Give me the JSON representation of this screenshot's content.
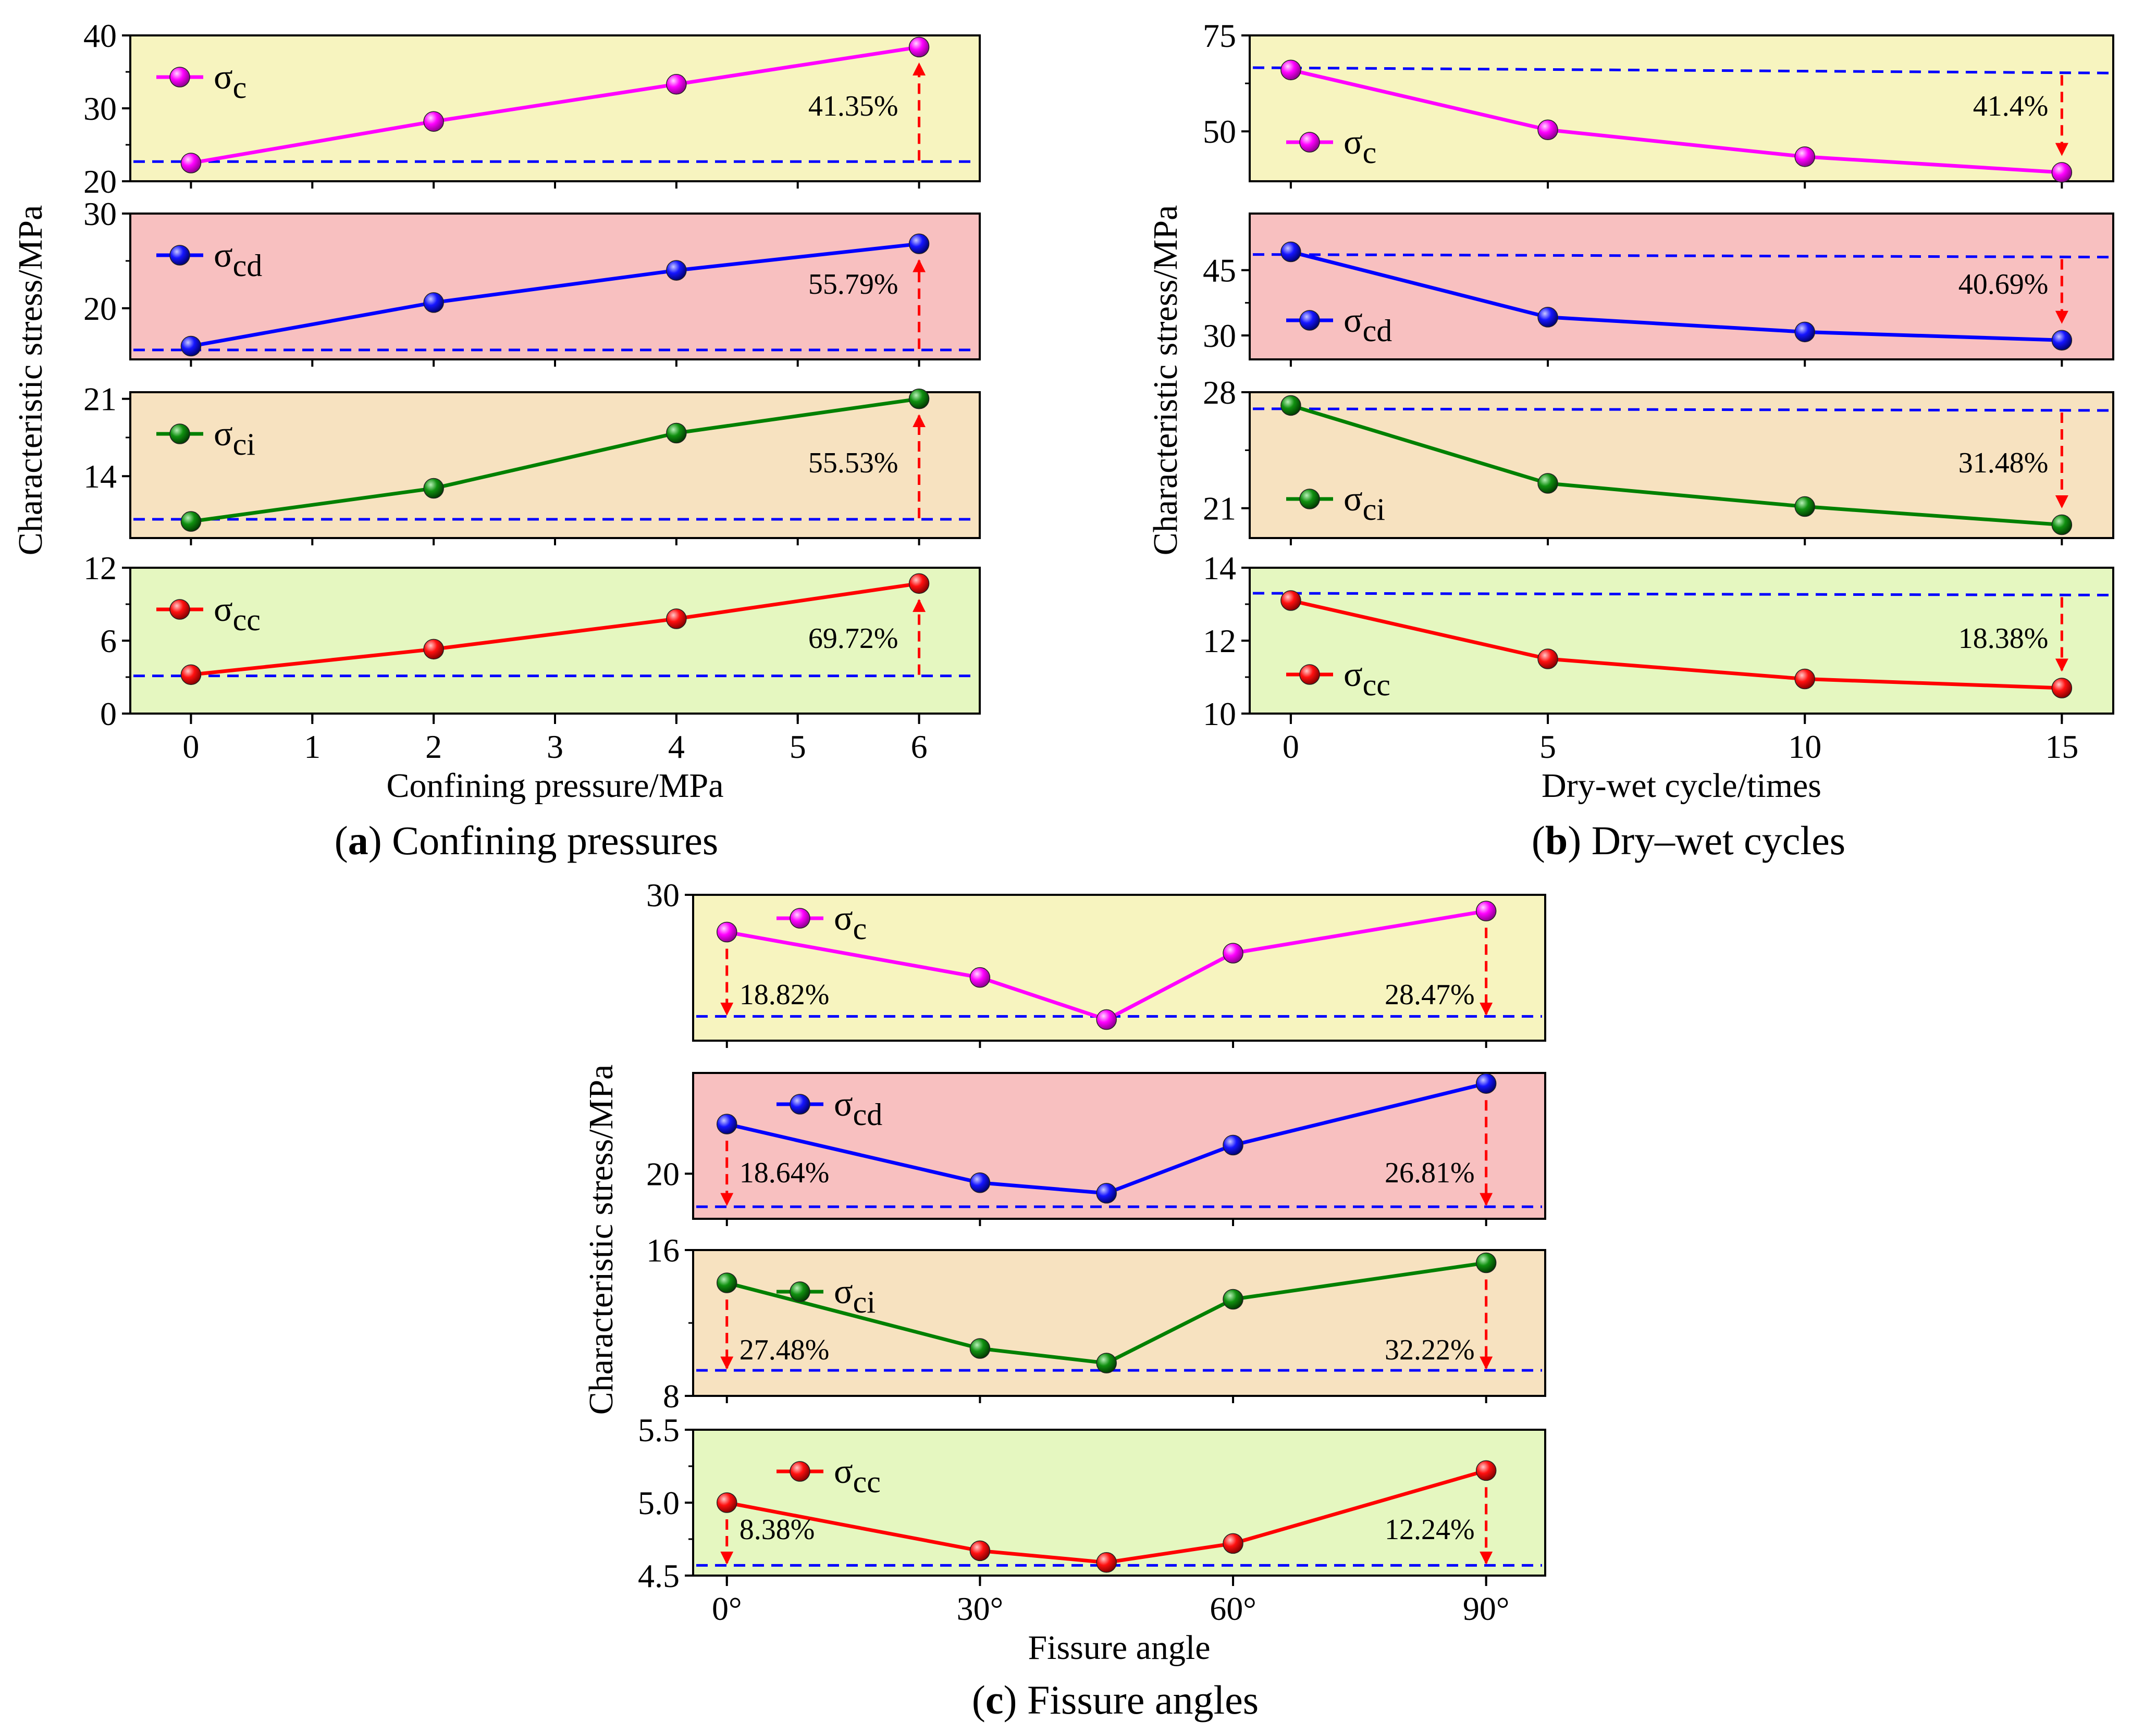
{
  "chart_data": [
    {
      "type": "line",
      "id": "a",
      "caption_letter": "a",
      "caption_text": "Confining pressures",
      "xlabel": "Confining pressure/MPa",
      "ylabel": "Characteristic stress/MPa",
      "xlim": [
        -0.5,
        6.5
      ],
      "xticks": [
        0,
        1,
        2,
        3,
        4,
        5,
        6
      ],
      "xtick_labels": [
        "0",
        "1",
        "2",
        "3",
        "4",
        "5",
        "6"
      ],
      "x": [
        0,
        2,
        4,
        6
      ],
      "arrow_direction": "up",
      "label_position": "right",
      "panels": [
        {
          "name": "σc",
          "symbol": "σ",
          "sub": "c",
          "color": "#ff00ff",
          "bg": "#f7f4bf",
          "values": [
            22.5,
            28.2,
            33.3,
            38.4
          ],
          "ylim": [
            20,
            40
          ],
          "yticks": [
            20,
            30,
            40
          ],
          "ytick_labels": [
            "20",
            "30",
            "40"
          ],
          "ref": [
            22.7,
            22.7
          ],
          "pct": "41.35%",
          "show_bottom_tick": true
        },
        {
          "name": "σcd",
          "symbol": "σ",
          "sub": "cd",
          "color": "#0000ff",
          "bg": "#f8c0c0",
          "values": [
            16.0,
            20.6,
            24.0,
            26.8
          ],
          "ylim": [
            14.6,
            30
          ],
          "yticks": [
            20,
            30
          ],
          "ytick_labels": [
            "20",
            "30"
          ],
          "ref": [
            15.6,
            15.6
          ],
          "pct": "55.79%",
          "show_bottom_tick": false
        },
        {
          "name": "σci",
          "symbol": "σ",
          "sub": "ci",
          "color": "#008000",
          "bg": "#f7e2c0",
          "values": [
            9.9,
            12.9,
            17.9,
            21.0
          ],
          "ylim": [
            8.4,
            21.6
          ],
          "yticks": [
            14,
            21
          ],
          "ytick_labels": [
            "14",
            "21"
          ],
          "ref": [
            10.1,
            10.1
          ],
          "pct": "55.53%",
          "show_bottom_tick": false
        },
        {
          "name": "σcc",
          "symbol": "σ",
          "sub": "cc",
          "color": "#ff0000",
          "bg": "#e5f7c0",
          "values": [
            3.2,
            5.3,
            7.8,
            10.7
          ],
          "ylim": [
            0,
            12
          ],
          "yticks": [
            0,
            6,
            12
          ],
          "ytick_labels": [
            "0",
            "6",
            "12"
          ],
          "ref": [
            3.1,
            3.1
          ],
          "pct": "69.72%",
          "show_bottom_tick": true
        }
      ]
    },
    {
      "type": "line",
      "id": "b",
      "caption_letter": "b",
      "caption_text": "Dry–wet cycles",
      "xlabel": "Dry-wet cycle/times",
      "ylabel": "Characteristic stress/MPa",
      "xlim": [
        -0.8,
        16
      ],
      "xticks": [
        0,
        5,
        10,
        15
      ],
      "xtick_labels": [
        "0",
        "5",
        "10",
        "15"
      ],
      "x": [
        0,
        5,
        10,
        15
      ],
      "arrow_direction": "down",
      "label_position": "left",
      "panels": [
        {
          "name": "σc",
          "symbol": "σ",
          "sub": "c",
          "color": "#ff00ff",
          "bg": "#f7f4bf",
          "values": [
            66.0,
            50.4,
            43.4,
            39.3
          ],
          "ylim": [
            37,
            75
          ],
          "yticks": [
            50,
            75
          ],
          "ytick_labels": [
            "50",
            "75"
          ],
          "ref": [
            66.6,
            65.2
          ],
          "pct": "41.4%",
          "show_bottom_tick": false
        },
        {
          "name": "σcd",
          "symbol": "σ",
          "sub": "cd",
          "color": "#0000ff",
          "bg": "#f8c0c0",
          "values": [
            49.2,
            34.2,
            30.8,
            28.9
          ],
          "ylim": [
            24.5,
            58
          ],
          "yticks": [
            30,
            45
          ],
          "ytick_labels": [
            "30",
            "45"
          ],
          "ref": [
            48.6,
            48.0
          ],
          "pct": "40.69%",
          "show_bottom_tick": false
        },
        {
          "name": "σci",
          "symbol": "σ",
          "sub": "ci",
          "color": "#008000",
          "bg": "#f7e2c0",
          "values": [
            27.2,
            22.5,
            21.1,
            20.0
          ],
          "ylim": [
            19.2,
            28
          ],
          "yticks": [
            21,
            28
          ],
          "ytick_labels": [
            "21",
            "28"
          ],
          "ref": [
            27.0,
            26.9
          ],
          "pct": "31.48%",
          "show_bottom_tick": false
        },
        {
          "name": "σcc",
          "symbol": "σ",
          "sub": "cc",
          "color": "#ff0000",
          "bg": "#e5f7c0",
          "values": [
            13.1,
            11.5,
            10.95,
            10.7
          ],
          "ylim": [
            10,
            14
          ],
          "yticks": [
            10,
            12,
            14
          ],
          "ytick_labels": [
            "10",
            "12",
            "14"
          ],
          "ref": [
            13.3,
            13.25
          ],
          "pct": "18.38%",
          "show_bottom_tick": true
        }
      ]
    },
    {
      "type": "line",
      "id": "c",
      "caption_letter": "c",
      "caption_text": "Fissure angles",
      "xlabel": "Fissure angle",
      "ylabel": "Characteristic stress/MPa",
      "xlim": [
        -4,
        97
      ],
      "xticks": [
        0,
        30,
        60,
        90
      ],
      "xtick_labels": [
        "0°",
        "30°",
        "60°",
        "90°"
      ],
      "x": [
        0,
        30,
        45,
        60,
        90
      ],
      "arrow_direction": "down",
      "label_position": "both",
      "panels": [
        {
          "name": "σc",
          "symbol": "σ",
          "sub": "c",
          "color": "#ff00ff",
          "bg": "#f7f4bf",
          "values": [
            27.7,
            24.9,
            22.3,
            26.4,
            29.0
          ],
          "ylim": [
            21.0,
            30
          ],
          "yticks": [
            30
          ],
          "ytick_labels": [
            "30"
          ],
          "ref": [
            22.5,
            22.5
          ],
          "pct_left": "18.82%",
          "pct_right": "28.47%",
          "show_bottom_tick": false
        },
        {
          "name": "σcd",
          "symbol": "σ",
          "sub": "cd",
          "color": "#0000ff",
          "bg": "#f8c0c0",
          "values": [
            23.3,
            19.4,
            18.7,
            21.9,
            26.0
          ],
          "ylim": [
            17.0,
            26.7
          ],
          "yticks": [
            20
          ],
          "ytick_labels": [
            "20"
          ],
          "ref": [
            17.8,
            17.8
          ],
          "pct_left": "18.64%",
          "pct_right": "26.81%",
          "show_bottom_tick": false
        },
        {
          "name": "σci",
          "symbol": "σ",
          "sub": "ci",
          "color": "#008000",
          "bg": "#f7e2c0",
          "values": [
            14.2,
            10.6,
            9.8,
            13.3,
            15.3
          ],
          "ylim": [
            8,
            16
          ],
          "yticks": [
            8,
            16
          ],
          "ytick_labels": [
            "8",
            "16"
          ],
          "ref": [
            9.4,
            9.4
          ],
          "pct_left": "27.48%",
          "pct_right": "32.22%",
          "show_bottom_tick": true
        },
        {
          "name": "σcc",
          "symbol": "σ",
          "sub": "cc",
          "color": "#ff0000",
          "bg": "#e5f7c0",
          "values": [
            5.0,
            4.67,
            4.59,
            4.72,
            5.22
          ],
          "ylim": [
            4.5,
            5.5
          ],
          "yticks": [
            4.5,
            5.0,
            5.5
          ],
          "ytick_labels": [
            "4.5",
            "5.0",
            "5.5"
          ],
          "ref": [
            4.57,
            4.57
          ],
          "pct_left": "8.38%",
          "pct_right": "12.24%",
          "show_bottom_tick": true
        }
      ]
    }
  ],
  "colors": {
    "ref_line": "#0000ff",
    "arrow": "#ff0000",
    "frame": "#000000"
  }
}
